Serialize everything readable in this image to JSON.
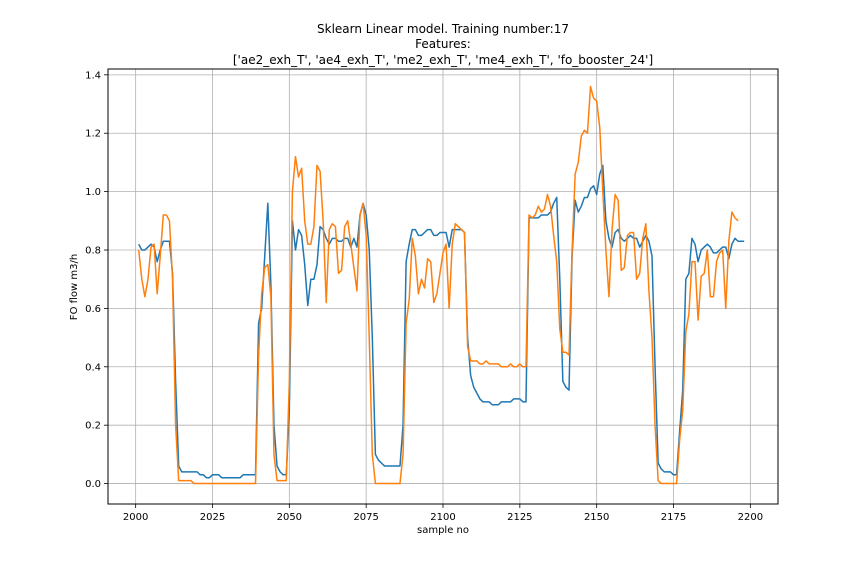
{
  "chart_data": {
    "type": "line",
    "title_lines": [
      "Sklearn Linear model. Training number:17",
      "Features:",
      "['ae2_exh_T', 'ae4_exh_T', 'me2_exh_T', 'me4_exh_T', 'fo_booster_24']"
    ],
    "xlabel": "sample no",
    "ylabel": "FO flow m3/h",
    "xlim": [
      1991,
      2209
    ],
    "ylim": [
      -0.07,
      1.42
    ],
    "xticks": [
      2000,
      2025,
      2050,
      2075,
      2100,
      2125,
      2150,
      2175,
      2200
    ],
    "yticks": [
      0.0,
      0.2,
      0.4,
      0.6,
      0.8,
      1.0,
      1.2,
      1.4
    ],
    "grid": true,
    "legend": "none",
    "series": [
      {
        "color": "#1f77b4",
        "x_start": 2001,
        "values": [
          0.82,
          0.8,
          0.8,
          0.81,
          0.82,
          0.81,
          0.76,
          0.8,
          0.83,
          0.83,
          0.83,
          0.72,
          0.35,
          0.06,
          0.04,
          0.04,
          0.04,
          0.04,
          0.04,
          0.04,
          0.03,
          0.03,
          0.02,
          0.02,
          0.03,
          0.03,
          0.03,
          0.02,
          0.02,
          0.02,
          0.02,
          0.02,
          0.02,
          0.02,
          0.03,
          0.03,
          0.03,
          0.03,
          0.03,
          0.55,
          0.6,
          0.78,
          0.96,
          0.68,
          0.2,
          0.06,
          0.04,
          0.03,
          0.03,
          0.25,
          0.9,
          0.8,
          0.87,
          0.85,
          0.75,
          0.61,
          0.7,
          0.7,
          0.75,
          0.88,
          0.87,
          0.84,
          0.82,
          0.84,
          0.84,
          0.83,
          0.83,
          0.84,
          0.84,
          0.81,
          0.84,
          0.81,
          0.92,
          0.96,
          0.92,
          0.8,
          0.5,
          0.1,
          0.08,
          0.07,
          0.06,
          0.06,
          0.06,
          0.06,
          0.06,
          0.06,
          0.2,
          0.76,
          0.82,
          0.87,
          0.87,
          0.85,
          0.85,
          0.86,
          0.87,
          0.87,
          0.85,
          0.85,
          0.86,
          0.86,
          0.86,
          0.81,
          0.87,
          0.87,
          0.87,
          0.87,
          0.86,
          0.5,
          0.37,
          0.33,
          0.31,
          0.29,
          0.28,
          0.28,
          0.28,
          0.27,
          0.27,
          0.27,
          0.28,
          0.28,
          0.28,
          0.28,
          0.29,
          0.29,
          0.29,
          0.28,
          0.28,
          0.91,
          0.91,
          0.91,
          0.91,
          0.92,
          0.92,
          0.92,
          0.93,
          0.96,
          0.98,
          0.7,
          0.35,
          0.33,
          0.32,
          0.78,
          0.97,
          0.93,
          0.95,
          0.98,
          0.98,
          1.01,
          1.02,
          0.99,
          1.06,
          1.09,
          0.9,
          0.84,
          0.81,
          0.86,
          0.87,
          0.84,
          0.83,
          0.84,
          0.85,
          0.84,
          0.84,
          0.81,
          0.83,
          0.85,
          0.83,
          0.78,
          0.4,
          0.07,
          0.05,
          0.04,
          0.04,
          0.04,
          0.03,
          0.03,
          0.18,
          0.32,
          0.7,
          0.72,
          0.84,
          0.82,
          0.76,
          0.8,
          0.81,
          0.82,
          0.81,
          0.79,
          0.79,
          0.8,
          0.81,
          0.81,
          0.77,
          0.82,
          0.84,
          0.83,
          0.83,
          0.83
        ]
      },
      {
        "color": "#ff7f0e",
        "x_start": 2001,
        "values": [
          0.8,
          0.7,
          0.64,
          0.7,
          0.81,
          0.82,
          0.65,
          0.78,
          0.92,
          0.92,
          0.9,
          0.7,
          0.2,
          0.01,
          0.01,
          0.01,
          0.01,
          0.01,
          0.0,
          0.0,
          0.0,
          0.0,
          0.0,
          0.0,
          0.0,
          0.0,
          0.0,
          0.0,
          0.0,
          0.0,
          0.0,
          0.0,
          0.0,
          0.0,
          0.0,
          0.0,
          0.0,
          0.0,
          0.0,
          0.44,
          0.65,
          0.74,
          0.75,
          0.64,
          0.1,
          0.01,
          0.01,
          0.01,
          0.01,
          0.35,
          1.0,
          1.12,
          1.05,
          1.08,
          0.9,
          0.82,
          0.82,
          0.88,
          1.09,
          1.07,
          0.9,
          0.62,
          0.87,
          0.89,
          0.88,
          0.72,
          0.73,
          0.88,
          0.9,
          0.82,
          0.74,
          0.66,
          0.92,
          0.96,
          0.85,
          0.5,
          0.1,
          0.0,
          0.0,
          0.0,
          0.0,
          0.0,
          0.0,
          0.0,
          0.0,
          0.0,
          0.1,
          0.55,
          0.63,
          0.84,
          0.78,
          0.65,
          0.7,
          0.67,
          0.77,
          0.76,
          0.62,
          0.65,
          0.72,
          0.79,
          0.82,
          0.6,
          0.82,
          0.89,
          0.88,
          0.87,
          0.86,
          0.47,
          0.42,
          0.42,
          0.42,
          0.41,
          0.41,
          0.42,
          0.41,
          0.41,
          0.41,
          0.41,
          0.4,
          0.4,
          0.4,
          0.41,
          0.4,
          0.4,
          0.41,
          0.4,
          0.4,
          0.92,
          0.91,
          0.92,
          0.95,
          0.93,
          0.94,
          0.99,
          0.95,
          0.85,
          0.76,
          0.53,
          0.45,
          0.45,
          0.44,
          0.8,
          1.06,
          1.1,
          1.19,
          1.21,
          1.2,
          1.36,
          1.32,
          1.31,
          1.22,
          1.0,
          0.8,
          0.64,
          0.87,
          0.99,
          0.97,
          0.73,
          0.74,
          0.85,
          0.86,
          0.86,
          0.7,
          0.72,
          0.84,
          0.89,
          0.66,
          0.5,
          0.2,
          0.01,
          0.0,
          0.0,
          0.0,
          0.0,
          0.0,
          0.0,
          0.15,
          0.25,
          0.52,
          0.58,
          0.76,
          0.76,
          0.56,
          0.71,
          0.72,
          0.8,
          0.64,
          0.64,
          0.76,
          0.79,
          0.8,
          0.6,
          0.83,
          0.93,
          0.91,
          0.9
        ]
      }
    ]
  }
}
